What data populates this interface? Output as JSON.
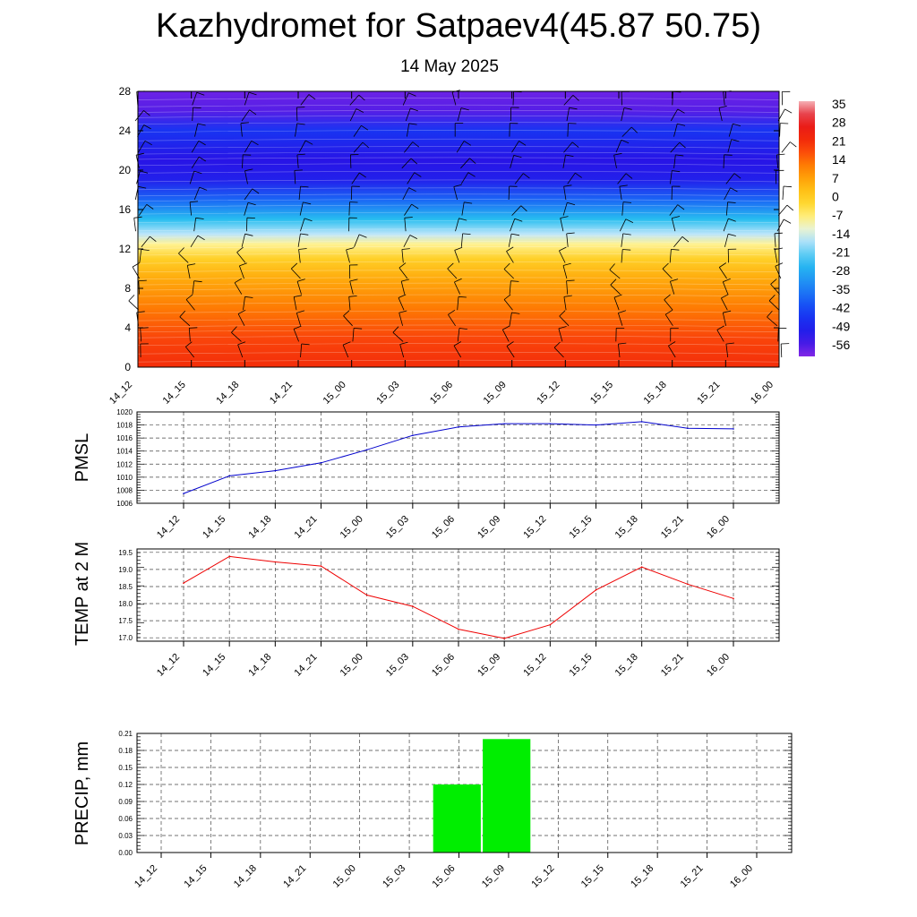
{
  "title": "Kazhydromet for Satpaev4(45.87 50.75)",
  "subtitle": "14 May 2025",
  "colors": {
    "pmsl_line": "#0000cc",
    "temp_line": "#ee0000",
    "precip_bar": "#00ee00",
    "wind_barb": "#000000"
  },
  "chart_data": [
    {
      "id": "cross-section",
      "type": "heatmap",
      "description_overlay": "wind barbs",
      "x_ticks": [
        "14_12",
        "14_15",
        "14_18",
        "14_21",
        "15_00",
        "15_03",
        "15_06",
        "15_09",
        "15_12",
        "15_15",
        "15_18",
        "15_21",
        "16_00"
      ],
      "y_ticks": [
        "0",
        "4",
        "8",
        "12",
        "16",
        "20",
        "24",
        "28"
      ],
      "ylim": [
        0,
        28
      ],
      "colorbar_labels": [
        "35",
        "28",
        "21",
        "14",
        "7",
        "0",
        "-7",
        "-14",
        "-21",
        "-28",
        "-35",
        "-42",
        "-49",
        "-56"
      ],
      "profile": [
        {
          "y": 0,
          "value": 22
        },
        {
          "y": 3,
          "value": 18
        },
        {
          "y": 6,
          "value": 12
        },
        {
          "y": 9,
          "value": 5
        },
        {
          "y": 11,
          "value": -2
        },
        {
          "y": 12.5,
          "value": -10
        },
        {
          "y": 13.5,
          "value": -18
        },
        {
          "y": 15,
          "value": -28
        },
        {
          "y": 17,
          "value": -42
        },
        {
          "y": 19,
          "value": -55
        },
        {
          "y": 21,
          "value": -58
        },
        {
          "y": 22.5,
          "value": -54
        },
        {
          "y": 24,
          "value": -50
        },
        {
          "y": 26,
          "value": -62
        },
        {
          "y": 28,
          "value": -64
        }
      ]
    },
    {
      "id": "pmsl",
      "type": "line",
      "ylabel": "PMSL",
      "x_ticks": [
        "14_12",
        "14_15",
        "14_18",
        "14_21",
        "15_00",
        "15_03",
        "15_06",
        "15_09",
        "15_12",
        "15_15",
        "15_18",
        "15_21",
        "16_00"
      ],
      "y_ticks": [
        "1006",
        "1008",
        "1010",
        "1012",
        "1014",
        "1016",
        "1018",
        "1020"
      ],
      "ylim": [
        1006,
        1020
      ],
      "grid": true,
      "values": [
        1007.5,
        1010.2,
        1011.0,
        1012.2,
        1014.2,
        1016.4,
        1017.7,
        1018.2,
        1018.2,
        1018.0,
        1018.5,
        1017.5,
        1017.4
      ]
    },
    {
      "id": "temp",
      "type": "line",
      "ylabel": "TEMP at 2 M",
      "x_ticks": [
        "14_12",
        "14_15",
        "14_18",
        "14_21",
        "15_00",
        "15_03",
        "15_06",
        "15_09",
        "15_12",
        "15_15",
        "15_18",
        "15_21",
        "16_00"
      ],
      "y_ticks": [
        "17.0",
        "17.5",
        "18.0",
        "18.5",
        "19.0",
        "19.5"
      ],
      "ylim": [
        16.9,
        19.6
      ],
      "grid": true,
      "values": [
        18.6,
        19.38,
        19.22,
        19.1,
        18.25,
        17.92,
        17.25,
        16.98,
        17.38,
        18.4,
        19.07,
        18.57,
        18.15
      ]
    },
    {
      "id": "precip",
      "type": "bar",
      "ylabel": "PRECIP, mm",
      "x_ticks": [
        "14_12",
        "14_15",
        "14_18",
        "14_21",
        "15_00",
        "15_03",
        "15_06",
        "15_09",
        "15_12",
        "15_15",
        "15_18",
        "15_21",
        "16_00"
      ],
      "y_ticks": [
        "0.00",
        "0.03",
        "0.06",
        "0.09",
        "0.12",
        "0.15",
        "0.18",
        "0.21"
      ],
      "ylim": [
        0,
        0.21
      ],
      "grid": true,
      "values": [
        0,
        0,
        0,
        0,
        0,
        0,
        0.12,
        0.2,
        0,
        0,
        0,
        0,
        0
      ]
    }
  ]
}
